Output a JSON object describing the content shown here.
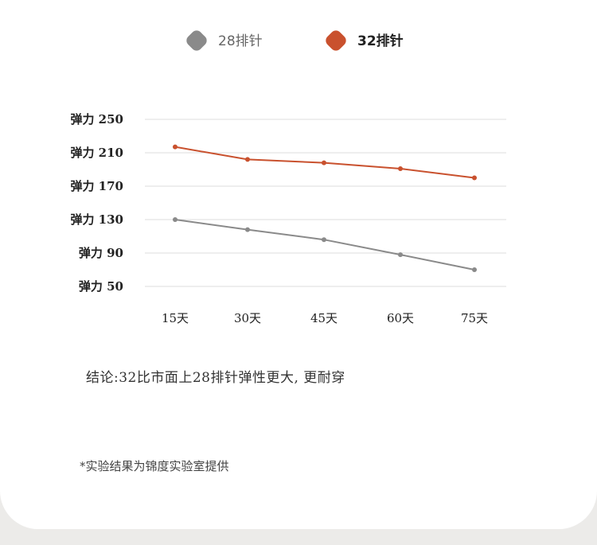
{
  "chart_data": {
    "type": "line",
    "categories": [
      "15天",
      "30天",
      "45天",
      "60天",
      "75天"
    ],
    "series": [
      {
        "name": "28排针",
        "values": [
          130,
          118,
          106,
          88,
          70
        ],
        "color": "#8a8a8a"
      },
      {
        "name": "32排针",
        "values": [
          217,
          202,
          198,
          191,
          180
        ],
        "color": "#c9512e"
      }
    ],
    "yticks": [
      "弹力 250",
      "弹力 210",
      "弹力 170",
      "弹力 130",
      "弹力 90",
      "弹力 50"
    ],
    "ytick_values": [
      250,
      210,
      170,
      130,
      90,
      50
    ],
    "ylim": [
      50,
      250
    ],
    "grid": true,
    "legend_position": "top"
  },
  "conclusion": "结论:32比市面上28排针弹性更大, 更耐穿",
  "footnote": "*实验结果为锦度实验室提供"
}
